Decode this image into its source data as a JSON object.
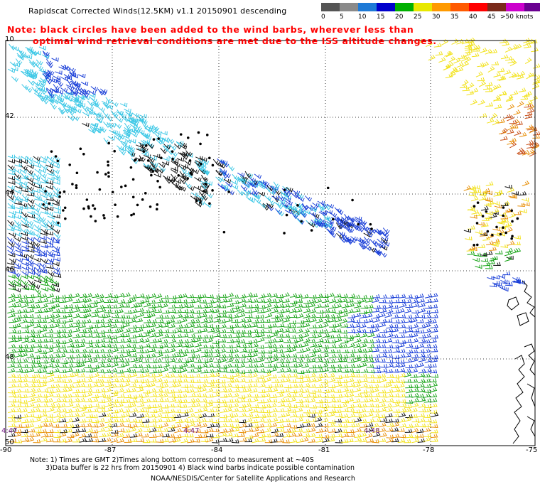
{
  "header": {
    "title": "Rapidscat Corrected Winds(12.5KM) v1.1 20150901 descending",
    "note_line1": "Note: black circles have been added to the wind barbs, wherever less than",
    "note_line2": "optimal wind retrieval conditions are met due to the ISS altitude changes."
  },
  "legend": {
    "colors": [
      "#555555",
      "#8a8a8a",
      "#1e7ad6",
      "#0000cc",
      "#00b000",
      "#e8e800",
      "#ff9a00",
      "#ff5a00",
      "#ff0000",
      "#7a2a1a",
      "#cc00cc",
      "#6a0090"
    ],
    "labels": [
      "0",
      "5",
      "10",
      "15",
      "20",
      "25",
      "30",
      "35",
      "40",
      "45",
      ">50 knots"
    ]
  },
  "axes": {
    "lat_labels": [
      "40",
      "42",
      "44",
      "46",
      "48"
    ],
    "lat_label_top": "10",
    "lat_label_bottom": "50",
    "lon_labels": [
      "-90",
      "-87",
      "-84",
      "-81",
      "-78",
      "-75"
    ]
  },
  "time_labels": [
    "4:47",
    "4:47",
    "4:48"
  ],
  "footer": {
    "line1": "Note: 1) Times are GMT 2)Times along bottom correspond to measurement at ~40S",
    "line2": "3)Data buffer is 22 hrs from 20150901 4) Black wind barbs indicate possible contamination",
    "credit": "NOAA/NESDIS/Center for Satellite Applications and Research"
  },
  "colors": {
    "low": "#111111",
    "light_blue": "#3ec8e6",
    "blue": "#1a3fd8",
    "green": "#19a419",
    "yellow": "#f2e21c",
    "orange": "#e8900a",
    "brown": "#c8501a",
    "time": "#7a2a8c"
  }
}
